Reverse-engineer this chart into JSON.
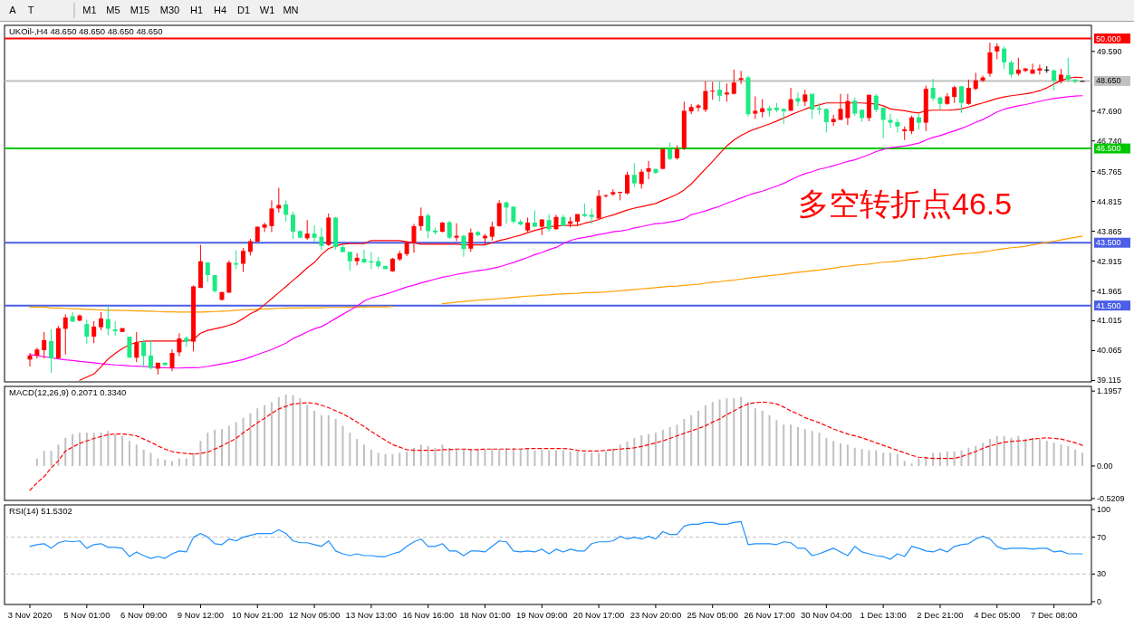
{
  "chart_data": [
    {
      "type": "other",
      "annotations": [
        "A",
        "T",
        "M1",
        "M5",
        "M15",
        "M30",
        "H1",
        "H4",
        "D1",
        "W1",
        "MN"
      ]
    },
    {
      "type": "candlestick",
      "title": "UKOil-,H4  48.650 48.650 48.650 48.650",
      "tick_labels": "y",
      "ylim": [
        39.07,
        50.42
      ],
      "yticks": [
        {
          "value": 49.59,
          "label": "49.590"
        },
        {
          "value": 47.69,
          "label": "47.690"
        },
        {
          "value": 46.74,
          "label": "46.740"
        },
        {
          "value": 45.765,
          "label": "45.765"
        },
        {
          "value": 44.815,
          "label": "44.815"
        },
        {
          "value": 43.865,
          "label": "43.865"
        },
        {
          "value": 42.915,
          "label": "42.915"
        },
        {
          "value": 41.965,
          "label": "41.965"
        },
        {
          "value": 41.015,
          "label": "41.015"
        },
        {
          "value": 40.065,
          "label": "40.065"
        },
        {
          "value": 39.115,
          "label": "39.115"
        }
      ],
      "ref_lines": [
        {
          "axis": "y",
          "value": 50.0,
          "label": "50.000",
          "color": "#ff0000"
        },
        {
          "axis": "y",
          "value": 48.65,
          "label": "48.650",
          "color": "#c0c0c0"
        },
        {
          "axis": "y",
          "value": 46.5,
          "label": "46.500",
          "color": "#00c800"
        },
        {
          "axis": "y",
          "value": 43.5,
          "label": "43.500",
          "color": "#4a5ee6"
        },
        {
          "axis": "y",
          "value": 41.5,
          "label": "41.500",
          "color": "#4a5ee6"
        }
      ],
      "annotations": [
        "多空转折点46.5"
      ],
      "series": [
        {
          "type": "line",
          "color": "#ff9f00",
          "values": [
            41.45,
            41.45,
            41.45,
            41.42,
            41.42,
            41.41,
            41.4,
            41.39,
            41.38,
            41.37,
            41.36,
            41.35,
            41.35,
            41.34,
            41.34,
            41.33,
            41.33,
            41.32,
            41.31,
            41.3,
            41.3,
            41.29,
            41.29,
            41.29,
            41.29,
            41.3,
            41.31,
            41.32,
            41.33,
            41.35,
            41.36,
            41.37,
            41.38,
            41.39,
            41.4,
            41.41,
            41.42,
            41.42,
            41.42,
            41.43,
            41.43,
            41.43,
            41.44,
            41.44,
            41.44,
            41.45,
            41.45,
            41.45,
            41.46,
            41.46,
            41.46,
            41.47,
            null,
            null,
            null,
            null,
            null,
            null,
            41.56,
            41.58,
            41.61,
            41.63,
            41.65,
            41.67,
            41.69,
            41.7,
            41.72,
            41.74,
            41.76,
            41.78,
            41.8,
            41.81,
            41.83,
            41.84,
            41.86,
            41.87,
            41.88,
            41.89,
            41.91,
            41.91,
            41.92,
            41.93,
            41.95,
            41.97,
            41.99,
            42.01,
            42.03,
            42.05,
            42.07,
            42.09,
            42.11,
            42.12,
            42.14,
            42.16,
            42.18,
            42.21,
            42.24,
            42.26,
            42.29,
            42.31,
            42.34,
            42.37,
            42.4,
            42.42,
            42.45,
            42.47,
            42.5,
            42.53,
            42.56,
            42.58,
            42.61,
            42.63,
            42.66,
            42.69,
            42.73,
            42.75,
            42.78,
            42.8,
            42.82,
            42.85,
            42.88,
            42.89,
            42.91,
            42.94,
            42.97,
            42.99,
            43.01,
            43.04,
            43.07,
            43.09,
            43.12,
            43.14,
            43.16,
            43.18,
            43.21,
            43.24,
            43.28,
            43.31,
            43.34,
            43.36,
            43.39,
            43.43,
            43.47,
            43.51,
            43.55,
            43.59,
            43.63,
            43.67,
            43.71
          ]
        },
        {
          "type": "line",
          "color": "#ff00ff",
          "values": [
            39.94,
            39.91,
            39.87,
            39.84,
            39.8,
            39.77,
            39.75,
            39.72,
            39.7,
            39.68,
            39.65,
            39.63,
            39.61,
            39.6,
            39.58,
            39.57,
            39.56,
            39.55,
            39.53,
            39.52,
            39.51,
            39.51,
            39.52,
            39.52,
            39.53,
            39.56,
            39.6,
            39.64,
            39.68,
            39.73,
            39.78,
            39.86,
            39.94,
            40.02,
            40.1,
            40.2,
            40.3,
            40.45,
            40.55,
            40.66,
            40.76,
            40.83,
            40.95,
            41.09,
            41.22,
            41.35,
            41.48,
            41.64,
            41.74,
            41.8,
            41.86,
            41.93,
            42.01,
            42.09,
            42.15,
            42.22,
            42.28,
            42.34,
            42.4,
            42.44,
            42.49,
            42.53,
            42.57,
            42.61,
            42.64,
            42.68,
            42.73,
            42.8,
            42.87,
            42.95,
            43.03,
            43.12,
            43.19,
            43.28,
            43.35,
            43.47,
            43.57,
            43.63,
            43.67,
            43.71,
            43.76,
            43.8,
            43.85,
            43.87,
            43.91,
            43.97,
            44.01,
            44.06,
            44.11,
            44.12,
            44.16,
            44.2,
            44.26,
            44.39,
            44.45,
            44.51,
            44.59,
            44.66,
            44.76,
            44.84,
            44.92,
            45.01,
            45.08,
            45.14,
            45.22,
            45.3,
            45.39,
            45.5,
            45.61,
            45.7,
            45.76,
            45.84,
            45.89,
            45.95,
            46.02,
            46.09,
            46.14,
            46.22,
            46.3,
            46.4,
            46.47,
            46.53,
            46.55,
            46.58,
            46.62,
            46.67,
            46.77,
            46.85,
            46.91,
            46.99,
            47.06,
            47.14,
            47.23,
            47.33,
            47.42,
            47.54,
            47.66,
            47.75,
            47.81,
            47.86,
            47.9,
            47.95,
            48.0,
            48.05,
            48.09,
            48.12,
            48.15,
            48.17,
            48.18
          ]
        },
        {
          "type": "line",
          "color": "#ff0000",
          "values": [
            null,
            null,
            null,
            null,
            null,
            null,
            null,
            39.12,
            39.22,
            39.32,
            39.55,
            39.8,
            39.98,
            40.13,
            40.25,
            40.33,
            40.36,
            40.37,
            40.37,
            40.37,
            40.37,
            40.37,
            40.37,
            40.42,
            40.62,
            40.71,
            40.76,
            40.81,
            40.87,
            40.95,
            41.09,
            41.24,
            41.35,
            41.53,
            41.72,
            41.91,
            42.1,
            42.3,
            42.49,
            42.7,
            42.87,
            43.12,
            43.31,
            43.4,
            43.45,
            43.47,
            43.47,
            43.47,
            43.57,
            43.57,
            43.57,
            43.57,
            43.57,
            43.53,
            43.5,
            43.45,
            43.45,
            43.45,
            43.45,
            43.45,
            43.45,
            43.43,
            43.43,
            43.43,
            43.43,
            43.5,
            43.57,
            43.62,
            43.68,
            43.74,
            43.82,
            43.89,
            43.95,
            44.01,
            44.03,
            44.05,
            44.05,
            44.05,
            44.12,
            44.17,
            44.24,
            44.32,
            44.38,
            44.46,
            44.54,
            44.6,
            44.65,
            44.7,
            44.75,
            44.85,
            44.94,
            45.04,
            45.18,
            45.37,
            45.61,
            45.85,
            46.09,
            46.34,
            46.58,
            46.77,
            46.91,
            47.03,
            47.12,
            47.2,
            47.28,
            47.37,
            47.47,
            47.57,
            47.66,
            47.75,
            47.83,
            47.89,
            47.95,
            47.95,
            47.95,
            47.95,
            47.95,
            47.95,
            47.93,
            47.92,
            47.86,
            47.76,
            47.73,
            47.7,
            47.66,
            47.63,
            47.7,
            47.72,
            47.72,
            47.72,
            47.73,
            47.76,
            47.82,
            47.89,
            47.95,
            48.02,
            48.09,
            48.14,
            48.18,
            48.21,
            48.24,
            48.28,
            48.34,
            48.43,
            48.55,
            48.66,
            48.74,
            48.77,
            48.76
          ]
        }
      ],
      "ohlc": [
        [
          39.78,
          39.99,
          39.56,
          39.91
        ],
        [
          39.91,
          40.16,
          39.82,
          40.1
        ],
        [
          40.08,
          40.66,
          39.82,
          40.4
        ],
        [
          40.37,
          40.74,
          39.36,
          39.82
        ],
        [
          39.82,
          40.85,
          39.82,
          40.78
        ],
        [
          40.76,
          41.22,
          39.94,
          41.12
        ],
        [
          41.16,
          41.29,
          40.97,
          40.99
        ],
        [
          41.02,
          41.22,
          41.0,
          41.18
        ],
        [
          40.91,
          41.05,
          40.28,
          40.51
        ],
        [
          40.51,
          41.0,
          40.3,
          40.83
        ],
        [
          40.81,
          41.29,
          40.71,
          41.09
        ],
        [
          41.07,
          41.48,
          40.55,
          40.76
        ],
        [
          40.74,
          41.0,
          40.54,
          40.68
        ],
        [
          40.66,
          40.78,
          40.66,
          40.78
        ],
        [
          40.51,
          40.51,
          39.84,
          39.84
        ],
        [
          39.84,
          40.66,
          39.7,
          40.32
        ],
        [
          40.33,
          40.42,
          39.53,
          39.89
        ],
        [
          39.91,
          40.39,
          39.46,
          39.51
        ],
        [
          39.49,
          39.68,
          39.3,
          39.68
        ],
        [
          39.68,
          39.7,
          39.6,
          39.6
        ],
        [
          39.51,
          40.1,
          39.41,
          39.99
        ],
        [
          40.01,
          40.62,
          39.89,
          40.45
        ],
        [
          40.47,
          40.52,
          40.18,
          40.35
        ],
        [
          40.35,
          42.14,
          40.04,
          42.11
        ],
        [
          42.06,
          43.43,
          42.06,
          42.91
        ],
        [
          42.87,
          42.87,
          42.25,
          42.47
        ],
        [
          42.47,
          42.47,
          41.91,
          41.96
        ],
        [
          41.68,
          41.93,
          41.66,
          41.93
        ],
        [
          41.91,
          42.94,
          41.91,
          42.87
        ],
        [
          42.85,
          43.26,
          42.66,
          42.8
        ],
        [
          42.83,
          43.33,
          42.57,
          43.24
        ],
        [
          43.21,
          43.62,
          43.09,
          43.55
        ],
        [
          43.53,
          44.01,
          43.53,
          44.01
        ],
        [
          43.98,
          44.14,
          43.84,
          44.08
        ],
        [
          44.03,
          44.85,
          43.84,
          44.59
        ],
        [
          44.59,
          45.25,
          44.46,
          44.7
        ],
        [
          44.72,
          44.85,
          44.17,
          44.39
        ],
        [
          44.39,
          44.49,
          43.62,
          43.85
        ],
        [
          43.87,
          43.91,
          43.64,
          43.66
        ],
        [
          43.64,
          44.22,
          43.59,
          43.79
        ],
        [
          43.79,
          44.05,
          43.53,
          43.66
        ],
        [
          43.69,
          43.98,
          43.26,
          43.4
        ],
        [
          43.43,
          44.43,
          43.4,
          44.3
        ],
        [
          44.3,
          44.32,
          43.28,
          43.36
        ],
        [
          43.36,
          43.45,
          43.2,
          43.2
        ],
        [
          43.21,
          43.21,
          42.6,
          42.91
        ],
        [
          42.91,
          43.16,
          42.78,
          43.02
        ],
        [
          42.99,
          43.28,
          42.85,
          42.87
        ],
        [
          42.91,
          43.21,
          42.66,
          42.87
        ],
        [
          42.91,
          43.05,
          42.68,
          42.75
        ],
        [
          42.76,
          42.76,
          42.66,
          42.66
        ],
        [
          42.59,
          43.02,
          42.57,
          42.99
        ],
        [
          42.97,
          43.24,
          42.92,
          43.16
        ],
        [
          43.14,
          43.55,
          43.07,
          43.5
        ],
        [
          43.5,
          44.1,
          43.18,
          44.03
        ],
        [
          44.03,
          44.62,
          43.88,
          44.35
        ],
        [
          44.37,
          44.43,
          43.64,
          43.87
        ],
        [
          43.89,
          43.98,
          43.76,
          43.83
        ],
        [
          43.85,
          44.16,
          43.83,
          44.14
        ],
        [
          44.15,
          44.2,
          43.62,
          43.66
        ],
        [
          43.66,
          44.12,
          43.55,
          43.72
        ],
        [
          43.72,
          43.76,
          43.05,
          43.3
        ],
        [
          43.31,
          43.95,
          43.21,
          43.82
        ],
        [
          43.84,
          43.87,
          43.7,
          43.74
        ],
        [
          43.64,
          43.78,
          43.43,
          43.72
        ],
        [
          43.69,
          44.17,
          43.57,
          44.01
        ],
        [
          44.03,
          44.85,
          44.01,
          44.76
        ],
        [
          44.78,
          44.82,
          44.1,
          44.62
        ],
        [
          44.65,
          44.65,
          44.1,
          44.17
        ],
        [
          44.17,
          44.24,
          44.05,
          44.08
        ],
        [
          43.89,
          44.3,
          43.84,
          44.14
        ],
        [
          44.14,
          44.53,
          44.01,
          44.01
        ],
        [
          44.01,
          44.24,
          43.74,
          44.24
        ],
        [
          44.22,
          44.41,
          43.84,
          43.93
        ],
        [
          43.93,
          44.39,
          43.91,
          44.32
        ],
        [
          44.32,
          44.39,
          44.03,
          44.03
        ],
        [
          44.1,
          44.32,
          43.99,
          44.18
        ],
        [
          44.17,
          44.41,
          44.05,
          44.41
        ],
        [
          44.41,
          44.75,
          44.31,
          44.35
        ],
        [
          44.39,
          44.59,
          44.1,
          44.32
        ],
        [
          44.27,
          45.18,
          44.27,
          44.99
        ],
        [
          44.98,
          45.04,
          44.94,
          45.01
        ],
        [
          45.04,
          45.2,
          44.99,
          45.11
        ],
        [
          45.09,
          45.12,
          44.85,
          45.12
        ],
        [
          45.07,
          45.76,
          45.04,
          45.66
        ],
        [
          45.66,
          46.03,
          45.28,
          45.39
        ],
        [
          45.37,
          45.84,
          45.22,
          45.76
        ],
        [
          45.76,
          46.1,
          45.52,
          45.87
        ],
        [
          45.85,
          45.85,
          45.69,
          45.72
        ],
        [
          45.85,
          46.48,
          45.85,
          46.48
        ],
        [
          46.48,
          46.69,
          46.12,
          46.17
        ],
        [
          46.19,
          46.6,
          46.14,
          46.48
        ],
        [
          46.51,
          47.99,
          46.45,
          47.7
        ],
        [
          47.68,
          47.91,
          47.59,
          47.82
        ],
        [
          47.8,
          47.92,
          47.68,
          47.87
        ],
        [
          47.73,
          48.64,
          47.66,
          48.33
        ],
        [
          48.32,
          48.62,
          48.05,
          48.34
        ],
        [
          48.37,
          48.64,
          47.99,
          48.18
        ],
        [
          48.22,
          48.57,
          47.99,
          48.28
        ],
        [
          48.24,
          49.01,
          48.22,
          48.6
        ],
        [
          48.68,
          48.97,
          48.55,
          48.74
        ],
        [
          48.76,
          48.82,
          47.51,
          47.59
        ],
        [
          47.61,
          48.16,
          47.44,
          47.7
        ],
        [
          47.66,
          48.07,
          47.49,
          47.78
        ],
        [
          47.78,
          47.86,
          47.51,
          47.7
        ],
        [
          47.8,
          47.95,
          47.66,
          47.72
        ],
        [
          47.76,
          47.78,
          47.28,
          47.68
        ],
        [
          47.7,
          48.43,
          47.7,
          48.07
        ],
        [
          48.1,
          48.28,
          47.85,
          47.99
        ],
        [
          47.99,
          48.37,
          47.85,
          48.22
        ],
        [
          48.24,
          48.24,
          47.44,
          47.74
        ],
        [
          47.78,
          47.95,
          47.59,
          47.74
        ],
        [
          47.76,
          47.78,
          47.01,
          47.34
        ],
        [
          47.34,
          47.57,
          47.22,
          47.44
        ],
        [
          47.41,
          48.24,
          47.41,
          47.76
        ],
        [
          47.47,
          48.24,
          47.25,
          48.01
        ],
        [
          48.02,
          48.12,
          47.54,
          47.61
        ],
        [
          47.73,
          47.73,
          47.35,
          47.47
        ],
        [
          47.47,
          48.21,
          47.37,
          48.21
        ],
        [
          48.18,
          48.24,
          47.66,
          47.73
        ],
        [
          47.8,
          47.8,
          46.83,
          47.41
        ],
        [
          47.41,
          47.61,
          47.15,
          47.32
        ],
        [
          47.34,
          47.44,
          47.01,
          47.2
        ],
        [
          47.05,
          47.2,
          46.77,
          47.11
        ],
        [
          47.05,
          47.54,
          46.96,
          47.49
        ],
        [
          47.49,
          47.61,
          47.1,
          47.32
        ],
        [
          47.32,
          48.5,
          47.05,
          48.4
        ],
        [
          48.43,
          48.72,
          48.02,
          48.09
        ],
        [
          48.12,
          48.16,
          47.73,
          47.92
        ],
        [
          47.92,
          48.26,
          47.89,
          48.16
        ],
        [
          48.14,
          48.5,
          47.95,
          48.45
        ],
        [
          48.48,
          48.48,
          47.63,
          47.95
        ],
        [
          47.92,
          48.69,
          47.89,
          48.43
        ],
        [
          48.4,
          48.91,
          48.35,
          48.67
        ],
        [
          48.66,
          48.82,
          48.62,
          48.76
        ],
        [
          48.88,
          49.87,
          48.79,
          49.56
        ],
        [
          49.59,
          49.85,
          49.34,
          49.75
        ],
        [
          49.68,
          49.75,
          49.03,
          49.24
        ],
        [
          49.24,
          49.3,
          48.76,
          48.85
        ],
        [
          48.88,
          49.39,
          48.82,
          49.01
        ],
        [
          48.97,
          49.05,
          48.93,
          49.05
        ],
        [
          48.88,
          49.2,
          48.88,
          49.01
        ],
        [
          48.98,
          49.17,
          48.85,
          49.05
        ],
        [
          49.01,
          49.12,
          48.91,
          49.01
        ],
        [
          48.98,
          49.03,
          48.34,
          48.66
        ],
        [
          48.64,
          49.03,
          48.57,
          48.85
        ],
        [
          48.83,
          49.39,
          48.62,
          48.69
        ],
        [
          48.69,
          48.71,
          48.57,
          48.64
        ],
        [
          48.65,
          48.65,
          48.65,
          48.65
        ]
      ],
      "colors": [
        "#ff0000",
        "#ff0000",
        "#ff0000",
        "#1de985",
        "#ff0000",
        "#ff0000",
        "#1de985",
        "#ff0000",
        "#1de985",
        "#ff0000",
        "#ff0000",
        "#1de985",
        "#1de985",
        "#ff0000",
        "#1de985",
        "#ff0000",
        "#1de985",
        "#1de985",
        "#ff0000",
        "#1de985",
        "#ff0000",
        "#ff0000",
        "#1de985",
        "#ff0000",
        "#ff0000",
        "#1de985",
        "#1de985",
        "#ff0000",
        "#ff0000",
        "#1de985",
        "#ff0000",
        "#ff0000",
        "#ff0000",
        "#ff0000",
        "#ff0000",
        "#ff0000",
        "#1de985",
        "#1de985",
        "#1de985",
        "#ff0000",
        "#1de985",
        "#1de985",
        "#ff0000",
        "#1de985",
        "#1de985",
        "#1de985",
        "#ff0000",
        "#1de985",
        "#1de985",
        "#1de985",
        "#1de985",
        "#ff0000",
        "#ff0000",
        "#ff0000",
        "#ff0000",
        "#ff0000",
        "#1de985",
        "#1de985",
        "#ff0000",
        "#1de985",
        "#ff0000",
        "#1de985",
        "#ff0000",
        "#1de985",
        "#ff0000",
        "#ff0000",
        "#ff0000",
        "#1de985",
        "#1de985",
        "#1de985",
        "#ff0000",
        "#1de985",
        "#ff0000",
        "#1de985",
        "#ff0000",
        "#1de985",
        "#ff0000",
        "#ff0000",
        "#1de985",
        "#1de985",
        "#ff0000",
        "#ff0000",
        "#ff0000",
        "#ff0000",
        "#ff0000",
        "#1de985",
        "#ff0000",
        "#ff0000",
        "#1de985",
        "#ff0000",
        "#1de985",
        "#ff0000",
        "#ff0000",
        "#ff0000",
        "#ff0000",
        "#ff0000",
        "#ff0000",
        "#1de985",
        "#ff0000",
        "#ff0000",
        "#ff0000",
        "#1de985",
        "#ff0000",
        "#ff0000",
        "#1de985",
        "#1de985",
        "#1de985",
        "#ff0000",
        "#1de985",
        "#ff0000",
        "#1de985",
        "#1de985",
        "#1de985",
        "#ff0000",
        "#ff0000",
        "#ff0000",
        "#1de985",
        "#1de985",
        "#ff0000",
        "#1de985",
        "#1de985",
        "#1de985",
        "#1de985",
        "#ff0000",
        "#ff0000",
        "#1de985",
        "#ff0000",
        "#1de985",
        "#1de985",
        "#ff0000",
        "#ff0000",
        "#1de985",
        "#ff0000",
        "#ff0000",
        "#ff0000",
        "#ff0000",
        "#ff0000",
        "#1de985",
        "#1de985",
        "#ff0000",
        "#ff0000",
        "#ff0000",
        "#ff0000",
        "#000000",
        "#1de985",
        "#ff0000",
        "#1de985",
        "#1de985",
        "#000000"
      ]
    },
    {
      "type": "bar",
      "title": "MACD(12,26,9) 0.2071 0.3340",
      "tick_labels": "y",
      "ylim": [
        -0.55,
        1.27
      ],
      "yticks": [
        1.1957,
        {
          "value": 0,
          "label": "0.00"
        },
        -0.5209
      ],
      "series": [
        {
          "type": "bar",
          "color": "#c0c0c0",
          "values": [
            null,
            0.12,
            0.24,
            0.24,
            0.34,
            0.45,
            0.51,
            0.53,
            0.53,
            0.53,
            0.53,
            0.56,
            0.51,
            0.48,
            0.4,
            0.34,
            0.26,
            0.21,
            0.12,
            0.1,
            0.08,
            0.12,
            0.12,
            0.21,
            0.4,
            0.53,
            0.58,
            0.59,
            0.64,
            0.7,
            0.77,
            0.84,
            0.92,
            0.97,
            1.02,
            1.1,
            1.14,
            1.13,
            1.08,
            0.97,
            0.88,
            0.81,
            0.81,
            0.75,
            0.64,
            0.53,
            0.43,
            0.34,
            0.26,
            0.21,
            0.19,
            0.19,
            0.21,
            0.23,
            0.29,
            0.34,
            0.32,
            0.29,
            0.34,
            0.29,
            0.26,
            0.26,
            0.27,
            0.27,
            0.26,
            0.28,
            0.27,
            0.29,
            0.29,
            0.26,
            0.27,
            0.25,
            0.26,
            0.25,
            0.25,
            0.25,
            0.23,
            0.23,
            0.21,
            0.21,
            0.21,
            0.23,
            0.28,
            0.34,
            0.39,
            0.45,
            0.49,
            0.51,
            0.53,
            0.58,
            0.62,
            0.66,
            0.75,
            0.81,
            0.88,
            0.97,
            1.02,
            1.06,
            1.08,
            1.08,
            1.1,
            1.02,
            0.92,
            0.88,
            0.81,
            0.73,
            0.66,
            0.66,
            0.62,
            0.59,
            0.56,
            0.53,
            0.45,
            0.4,
            0.36,
            0.34,
            0.29,
            0.27,
            0.25,
            0.25,
            0.21,
            0.21,
            0.19,
            0.08,
            0.04,
            0.12,
            0.15,
            0.21,
            0.21,
            0.23,
            0.23,
            0.25,
            0.29,
            0.32,
            0.37,
            0.43,
            0.48,
            0.48,
            0.45,
            0.48,
            0.43,
            0.45,
            0.43,
            0.4,
            0.37,
            0.34,
            0.32,
            0.26,
            0.21
          ]
        },
        {
          "type": "line",
          "color": "#ff0000",
          "line_style": "dashed",
          "values": [
            -0.39,
            -0.27,
            -0.17,
            -0.03,
            0.08,
            0.24,
            0.3,
            0.36,
            0.4,
            0.44,
            0.47,
            0.5,
            0.51,
            0.51,
            0.5,
            0.48,
            0.43,
            0.38,
            0.32,
            0.27,
            0.23,
            0.21,
            0.2,
            0.19,
            0.2,
            0.22,
            0.27,
            0.32,
            0.38,
            0.44,
            0.53,
            0.61,
            0.69,
            0.76,
            0.84,
            0.91,
            0.95,
            0.99,
            1.0,
            1.01,
            1.0,
            0.97,
            0.93,
            0.88,
            0.83,
            0.77,
            0.7,
            0.63,
            0.55,
            0.48,
            0.41,
            0.34,
            0.3,
            0.26,
            0.25,
            0.25,
            0.25,
            0.25,
            0.26,
            0.26,
            0.27,
            0.27,
            0.26,
            0.26,
            0.27,
            0.27,
            0.27,
            0.27,
            0.27,
            0.27,
            0.28,
            0.28,
            0.28,
            0.28,
            0.28,
            0.28,
            0.27,
            0.25,
            0.24,
            0.24,
            0.24,
            0.25,
            0.26,
            0.27,
            0.28,
            0.29,
            0.31,
            0.34,
            0.37,
            0.4,
            0.44,
            0.48,
            0.52,
            0.56,
            0.6,
            0.64,
            0.7,
            0.75,
            0.82,
            0.88,
            0.94,
            0.99,
            1.01,
            1.02,
            1.01,
            0.99,
            0.94,
            0.88,
            0.83,
            0.77,
            0.73,
            0.69,
            0.64,
            0.59,
            0.55,
            0.51,
            0.48,
            0.45,
            0.41,
            0.37,
            0.33,
            0.29,
            0.25,
            0.21,
            0.17,
            0.14,
            0.13,
            0.12,
            0.12,
            0.12,
            0.12,
            0.15,
            0.19,
            0.23,
            0.28,
            0.32,
            0.35,
            0.38,
            0.39,
            0.4,
            0.41,
            0.43,
            0.44,
            0.45,
            0.44,
            0.43,
            0.4,
            0.37,
            0.33
          ]
        }
      ]
    },
    {
      "type": "line",
      "title": "RSI(14) 51.5302",
      "categories": [
        "3 Nov 2020",
        null,
        null,
        null,
        null,
        null,
        null,
        null,
        "5 Nov 01:00",
        null,
        null,
        null,
        null,
        null,
        null,
        null,
        "6 Nov 09:00",
        null,
        null,
        null,
        null,
        null,
        null,
        null,
        "9 Nov 12:00",
        null,
        null,
        null,
        null,
        null,
        null,
        null,
        "10 Nov 21:00",
        null,
        null,
        null,
        null,
        null,
        null,
        null,
        "12 Nov 05:00",
        null,
        null,
        null,
        null,
        null,
        null,
        null,
        "13 Nov 13:00",
        null,
        null,
        null,
        null,
        null,
        null,
        null,
        "16 Nov 16:00",
        null,
        null,
        null,
        null,
        null,
        null,
        null,
        "18 Nov 01:00",
        null,
        null,
        null,
        null,
        null,
        null,
        null,
        "19 Nov 09:00",
        null,
        null,
        null,
        null,
        null,
        null,
        null,
        "20 Nov 17:00",
        null,
        null,
        null,
        null,
        null,
        null,
        null,
        "23 Nov 20:00",
        null,
        null,
        null,
        null,
        null,
        null,
        null,
        "25 Nov 05:00",
        null,
        null,
        null,
        null,
        null,
        null,
        null,
        "26 Nov 17:00",
        null,
        null,
        null,
        null,
        null,
        null,
        null,
        "30 Nov 04:00",
        null,
        null,
        null,
        null,
        null,
        null,
        null,
        "1 Dec 13:00",
        null,
        null,
        null,
        null,
        null,
        null,
        null,
        "2 Dec 21:00",
        null,
        null,
        null,
        null,
        null,
        null,
        null,
        "4 Dec 05:00",
        null,
        null,
        null,
        null,
        null,
        null,
        null,
        "7 Dec 08:00",
        null,
        null,
        null,
        null
      ],
      "ylim": [
        -3,
        105
      ],
      "yticks": [
        100,
        70,
        30,
        0
      ],
      "ref_lines": [
        {
          "axis": "y",
          "value": 70,
          "color": "#c0c0c0",
          "line_style": "dashed"
        },
        {
          "axis": "y",
          "value": 30,
          "color": "#c0c0c0",
          "line_style": "dashed"
        }
      ],
      "series": [
        {
          "color": "#1e90ff",
          "values": [
            60,
            62,
            63,
            58,
            64,
            66,
            65,
            66,
            58,
            62,
            63,
            59,
            59,
            58,
            49,
            54,
            50,
            47,
            49,
            47,
            52,
            55,
            54,
            70,
            74,
            70,
            63,
            62,
            68,
            66,
            70,
            72,
            74,
            74,
            74,
            78,
            74,
            66,
            64,
            64,
            62,
            60,
            66,
            55,
            52,
            50,
            52,
            50,
            50,
            49,
            49,
            52,
            54,
            60,
            65,
            68,
            60,
            60,
            63,
            55,
            55,
            50,
            55,
            55,
            54,
            60,
            66,
            65,
            55,
            54,
            55,
            54,
            57,
            52,
            57,
            54,
            57,
            55,
            55,
            63,
            65,
            65,
            66,
            71,
            68,
            70,
            68,
            71,
            68,
            76,
            73,
            73,
            82,
            84,
            84,
            86,
            86,
            84,
            84,
            86,
            87,
            62,
            63,
            63,
            63,
            62,
            65,
            64,
            58,
            58,
            50,
            52,
            55,
            58,
            54,
            50,
            60,
            54,
            52,
            50,
            49,
            46,
            52,
            49,
            60,
            58,
            55,
            54,
            57,
            54,
            60,
            62,
            63,
            68,
            71,
            68,
            60,
            57,
            58,
            58,
            58,
            57,
            58,
            58,
            54,
            55,
            52,
            52,
            52
          ]
        }
      ]
    }
  ]
}
